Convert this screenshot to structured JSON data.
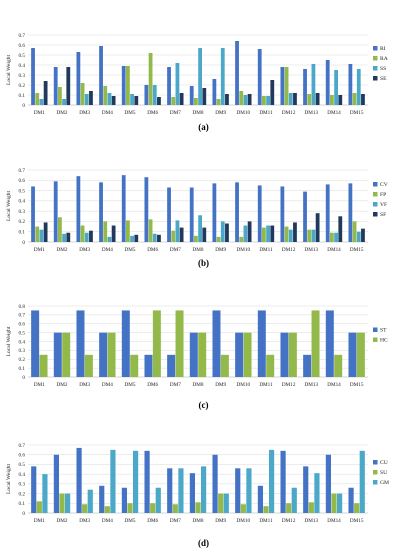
{
  "chart_data": [
    {
      "type": "bar",
      "panel_label": "(a)",
      "ylabel": "Local Weight",
      "ylim": [
        0,
        0.7
      ],
      "yticks": [
        0,
        0.1,
        0.2,
        0.3,
        0.4,
        0.5,
        0.6,
        0.7
      ],
      "grid": true,
      "legend_position": "right",
      "categories": [
        "DM1",
        "DM2",
        "DM3",
        "DM4",
        "DM5",
        "DM6",
        "DM7",
        "DM8",
        "DM9",
        "DM10",
        "DM11",
        "DM12",
        "DM13",
        "DM14",
        "DM15"
      ],
      "series": [
        {
          "name": "RI",
          "color": "#4472c4",
          "values": [
            0.57,
            0.38,
            0.53,
            0.59,
            0.39,
            0.2,
            0.38,
            0.19,
            0.26,
            0.64,
            0.56,
            0.38,
            0.36,
            0.45,
            0.41
          ]
        },
        {
          "name": "RA",
          "color": "#92b94a",
          "values": [
            0.12,
            0.18,
            0.22,
            0.19,
            0.39,
            0.52,
            0.08,
            0.07,
            0.06,
            0.14,
            0.09,
            0.38,
            0.11,
            0.1,
            0.12
          ]
        },
        {
          "name": "SS",
          "color": "#4ba8c8",
          "values": [
            0.06,
            0.06,
            0.11,
            0.12,
            0.11,
            0.2,
            0.42,
            0.57,
            0.57,
            0.1,
            0.09,
            0.12,
            0.41,
            0.35,
            0.36
          ]
        },
        {
          "name": "SE",
          "color": "#22395e",
          "values": [
            0.24,
            0.38,
            0.14,
            0.09,
            0.09,
            0.08,
            0.12,
            0.17,
            0.11,
            0.11,
            0.25,
            0.12,
            0.12,
            0.1,
            0.11
          ]
        }
      ]
    },
    {
      "type": "bar",
      "panel_label": "(b)",
      "ylabel": "Local Weight",
      "ylim": [
        0,
        0.7
      ],
      "yticks": [
        0,
        0.1,
        0.2,
        0.3,
        0.4,
        0.5,
        0.6,
        0.7
      ],
      "grid": true,
      "legend_position": "right",
      "categories": [
        "DM1",
        "DM2",
        "DM3",
        "DM4",
        "DM5",
        "DM6",
        "DM7",
        "DM8",
        "DM9",
        "DM10",
        "DM11",
        "DM12",
        "DM13",
        "DM14",
        "DM15"
      ],
      "series": [
        {
          "name": "CV",
          "color": "#4472c4",
          "values": [
            0.54,
            0.59,
            0.64,
            0.58,
            0.65,
            0.63,
            0.53,
            0.53,
            0.57,
            0.58,
            0.55,
            0.54,
            0.49,
            0.56,
            0.57
          ]
        },
        {
          "name": "FP",
          "color": "#92b94a",
          "values": [
            0.15,
            0.24,
            0.16,
            0.2,
            0.21,
            0.22,
            0.11,
            0.06,
            0.05,
            0.05,
            0.14,
            0.15,
            0.12,
            0.09,
            0.2
          ]
        },
        {
          "name": "VF",
          "color": "#4ba8c8",
          "values": [
            0.12,
            0.08,
            0.09,
            0.05,
            0.06,
            0.08,
            0.21,
            0.26,
            0.2,
            0.16,
            0.16,
            0.12,
            0.12,
            0.09,
            0.1
          ]
        },
        {
          "name": "SF",
          "color": "#22395e",
          "values": [
            0.19,
            0.09,
            0.11,
            0.16,
            0.07,
            0.07,
            0.14,
            0.14,
            0.18,
            0.2,
            0.16,
            0.19,
            0.28,
            0.25,
            0.13
          ]
        }
      ]
    },
    {
      "type": "bar",
      "panel_label": "(c)",
      "ylabel": "Local Weight",
      "ylim": [
        0,
        0.8
      ],
      "yticks": [
        0,
        0.1,
        0.2,
        0.3,
        0.4,
        0.5,
        0.6,
        0.7,
        0.8
      ],
      "grid": true,
      "legend_position": "right",
      "categories": [
        "DM1",
        "DM2",
        "DM3",
        "DM4",
        "DM5",
        "DM6",
        "DM7",
        "DM8",
        "DM9",
        "DM10",
        "DM11",
        "DM12",
        "DM13",
        "DM14",
        "DM15"
      ],
      "series": [
        {
          "name": "ST",
          "color": "#4472c4",
          "values": [
            0.75,
            0.5,
            0.75,
            0.5,
            0.75,
            0.25,
            0.25,
            0.5,
            0.75,
            0.5,
            0.75,
            0.5,
            0.25,
            0.75,
            0.5
          ]
        },
        {
          "name": "HC",
          "color": "#92b94a",
          "values": [
            0.25,
            0.5,
            0.25,
            0.5,
            0.25,
            0.75,
            0.75,
            0.5,
            0.25,
            0.5,
            0.25,
            0.5,
            0.75,
            0.25,
            0.5
          ]
        }
      ]
    },
    {
      "type": "bar",
      "panel_label": "(d)",
      "ylabel": "Local Weight",
      "ylim": [
        0,
        0.7
      ],
      "yticks": [
        0,
        0.1,
        0.2,
        0.3,
        0.4,
        0.5,
        0.6,
        0.7
      ],
      "grid": true,
      "legend_position": "right",
      "categories": [
        "DM1",
        "DM2",
        "DM3",
        "DM4",
        "DM5",
        "DM6",
        "DM7",
        "DM8",
        "DM9",
        "DM10",
        "DM11",
        "DM12",
        "DM13",
        "DM14",
        "DM15"
      ],
      "series": [
        {
          "name": "CU",
          "color": "#4472c4",
          "values": [
            0.48,
            0.6,
            0.67,
            0.28,
            0.26,
            0.64,
            0.46,
            0.41,
            0.6,
            0.46,
            0.28,
            0.64,
            0.48,
            0.6,
            0.26
          ]
        },
        {
          "name": "SU",
          "color": "#92b94a",
          "values": [
            0.12,
            0.2,
            0.09,
            0.07,
            0.1,
            0.1,
            0.09,
            0.11,
            0.2,
            0.09,
            0.07,
            0.1,
            0.11,
            0.2,
            0.1
          ]
        },
        {
          "name": "GM",
          "color": "#4ba8c8",
          "values": [
            0.4,
            0.2,
            0.24,
            0.65,
            0.64,
            0.26,
            0.46,
            0.48,
            0.2,
            0.46,
            0.65,
            0.26,
            0.41,
            0.2,
            0.64
          ]
        }
      ]
    }
  ]
}
